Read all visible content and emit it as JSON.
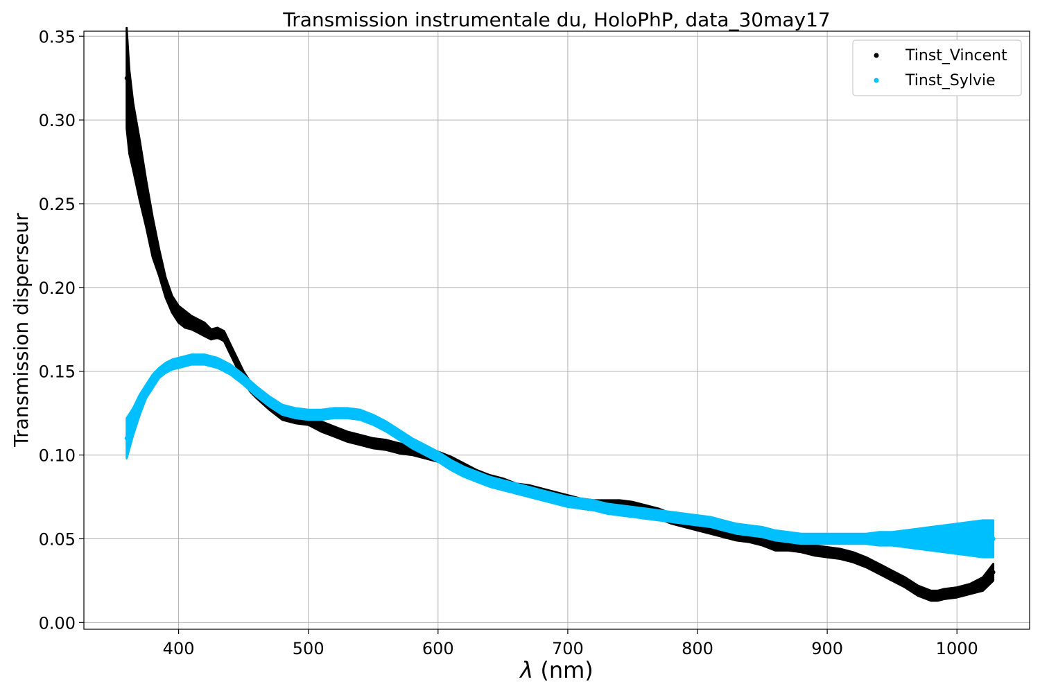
{
  "chart_data": {
    "type": "scatter",
    "title": "Transmission instrumentale du, HoloPhP, data_30may17",
    "xlabel_symbol": "λ",
    "xlabel_unit": "(nm)",
    "ylabel": "Transmission disperseur",
    "xlim": [
      327,
      1056
    ],
    "ylim": [
      -0.004,
      0.353
    ],
    "xticks": [
      400,
      500,
      600,
      700,
      800,
      900,
      1000
    ],
    "yticks": [
      0.0,
      0.05,
      0.1,
      0.15,
      0.2,
      0.25,
      0.3,
      0.35
    ],
    "ytick_labels": [
      "0.00",
      "0.05",
      "0.10",
      "0.15",
      "0.20",
      "0.25",
      "0.30",
      "0.35"
    ],
    "grid": true,
    "legend_position": "top-right",
    "series": [
      {
        "name": "Tinst_Vincent",
        "color": "#000000",
        "x": [
          360,
          362,
          365,
          370,
          375,
          380,
          385,
          390,
          395,
          400,
          405,
          410,
          415,
          420,
          425,
          430,
          435,
          440,
          445,
          450,
          455,
          460,
          470,
          480,
          490,
          500,
          510,
          520,
          530,
          540,
          550,
          560,
          570,
          580,
          590,
          600,
          610,
          620,
          630,
          640,
          650,
          660,
          670,
          680,
          690,
          700,
          710,
          720,
          730,
          740,
          750,
          760,
          770,
          780,
          790,
          800,
          810,
          820,
          830,
          840,
          850,
          860,
          870,
          880,
          890,
          900,
          910,
          920,
          930,
          940,
          950,
          960,
          970,
          980,
          985,
          990,
          1000,
          1010,
          1020,
          1028
        ],
        "y": [
          0.325,
          0.305,
          0.29,
          0.27,
          0.25,
          0.23,
          0.215,
          0.2,
          0.19,
          0.184,
          0.181,
          0.179,
          0.177,
          0.175,
          0.172,
          0.173,
          0.171,
          0.163,
          0.155,
          0.147,
          0.141,
          0.137,
          0.13,
          0.124,
          0.122,
          0.121,
          0.117,
          0.114,
          0.111,
          0.109,
          0.107,
          0.106,
          0.104,
          0.103,
          0.101,
          0.099,
          0.096,
          0.092,
          0.088,
          0.085,
          0.083,
          0.08,
          0.079,
          0.077,
          0.075,
          0.073,
          0.071,
          0.07,
          0.07,
          0.07,
          0.069,
          0.067,
          0.065,
          0.062,
          0.06,
          0.058,
          0.056,
          0.054,
          0.052,
          0.051,
          0.049,
          0.046,
          0.046,
          0.045,
          0.043,
          0.042,
          0.041,
          0.039,
          0.036,
          0.032,
          0.028,
          0.024,
          0.019,
          0.016,
          0.016,
          0.017,
          0.018,
          0.02,
          0.023,
          0.03
        ],
        "spread": [
          0.03,
          0.025,
          0.02,
          0.018,
          0.014,
          0.012,
          0.008,
          0.006,
          0.005,
          0.005,
          0.005,
          0.004,
          0.004,
          0.004,
          0.003,
          0.003,
          0.003,
          0.003,
          0.003,
          0.003,
          0.003,
          0.003,
          0.003,
          0.003,
          0.003,
          0.003,
          0.003,
          0.003,
          0.003,
          0.003,
          0.003,
          0.003,
          0.003,
          0.003,
          0.003,
          0.003,
          0.003,
          0.003,
          0.003,
          0.003,
          0.003,
          0.003,
          0.003,
          0.003,
          0.003,
          0.003,
          0.003,
          0.003,
          0.003,
          0.003,
          0.003,
          0.003,
          0.003,
          0.003,
          0.003,
          0.003,
          0.003,
          0.003,
          0.003,
          0.003,
          0.003,
          0.003,
          0.003,
          0.003,
          0.003,
          0.003,
          0.003,
          0.003,
          0.003,
          0.003,
          0.003,
          0.003,
          0.003,
          0.003,
          0.003,
          0.003,
          0.003,
          0.003,
          0.004,
          0.005
        ]
      },
      {
        "name": "Tinst_Sylvie",
        "color": "#00bfff",
        "x": [
          360,
          365,
          370,
          375,
          380,
          385,
          390,
          395,
          400,
          405,
          410,
          415,
          420,
          425,
          430,
          435,
          440,
          445,
          450,
          460,
          470,
          480,
          490,
          500,
          510,
          520,
          530,
          540,
          550,
          560,
          570,
          580,
          590,
          600,
          610,
          620,
          630,
          640,
          650,
          660,
          670,
          680,
          690,
          700,
          710,
          720,
          730,
          740,
          750,
          760,
          770,
          780,
          790,
          800,
          810,
          820,
          830,
          840,
          850,
          860,
          870,
          880,
          890,
          900,
          910,
          920,
          930,
          940,
          950,
          960,
          970,
          980,
          990,
          1000,
          1010,
          1020,
          1028
        ],
        "y": [
          0.11,
          0.12,
          0.13,
          0.138,
          0.144,
          0.149,
          0.152,
          0.154,
          0.155,
          0.156,
          0.157,
          0.157,
          0.157,
          0.156,
          0.155,
          0.153,
          0.151,
          0.148,
          0.145,
          0.138,
          0.132,
          0.127,
          0.125,
          0.124,
          0.124,
          0.125,
          0.125,
          0.124,
          0.121,
          0.117,
          0.112,
          0.107,
          0.103,
          0.099,
          0.094,
          0.09,
          0.087,
          0.084,
          0.082,
          0.08,
          0.078,
          0.076,
          0.074,
          0.072,
          0.071,
          0.07,
          0.068,
          0.067,
          0.066,
          0.065,
          0.064,
          0.063,
          0.062,
          0.061,
          0.06,
          0.058,
          0.056,
          0.055,
          0.054,
          0.052,
          0.051,
          0.05,
          0.05,
          0.05,
          0.05,
          0.05,
          0.05,
          0.05,
          0.05,
          0.05,
          0.05,
          0.05,
          0.05,
          0.05,
          0.05,
          0.05,
          0.05
        ],
        "spread": [
          0.012,
          0.008,
          0.006,
          0.004,
          0.004,
          0.003,
          0.003,
          0.003,
          0.003,
          0.003,
          0.003,
          0.003,
          0.003,
          0.003,
          0.003,
          0.003,
          0.003,
          0.003,
          0.003,
          0.003,
          0.003,
          0.003,
          0.003,
          0.003,
          0.003,
          0.003,
          0.003,
          0.003,
          0.003,
          0.003,
          0.003,
          0.003,
          0.003,
          0.003,
          0.003,
          0.003,
          0.003,
          0.003,
          0.003,
          0.003,
          0.003,
          0.003,
          0.003,
          0.003,
          0.003,
          0.003,
          0.003,
          0.003,
          0.003,
          0.003,
          0.003,
          0.003,
          0.003,
          0.003,
          0.003,
          0.003,
          0.003,
          0.003,
          0.003,
          0.003,
          0.003,
          0.003,
          0.003,
          0.003,
          0.003,
          0.003,
          0.003,
          0.004,
          0.004,
          0.005,
          0.006,
          0.007,
          0.008,
          0.009,
          0.01,
          0.011,
          0.011
        ]
      }
    ]
  }
}
